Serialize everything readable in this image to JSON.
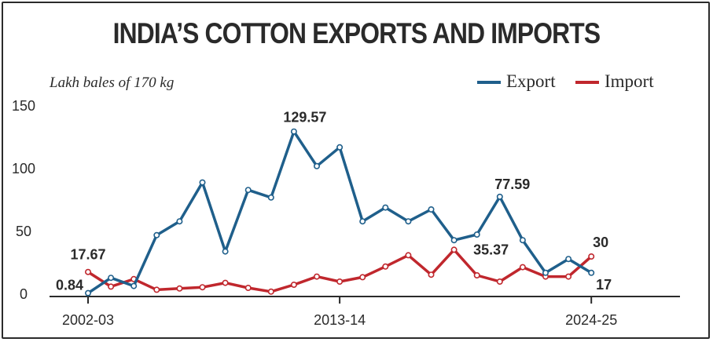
{
  "chart_data": {
    "type": "line",
    "title": "INDIA’S COTTON EXPORTS AND IMPORTS",
    "ylabel": "Lakh bales of 170 kg",
    "xlabel": "",
    "ylim": [
      0,
      150
    ],
    "yticks": [
      0,
      50,
      100,
      150
    ],
    "x": [
      "2002-03",
      "2003-04",
      "2004-05",
      "2005-06",
      "2006-07",
      "2007-08",
      "2008-09",
      "2009-10",
      "2010-11",
      "2011-12",
      "2012-13",
      "2013-14",
      "2014-15",
      "2015-16",
      "2016-17",
      "2017-18",
      "2018-19",
      "2019-20",
      "2020-21",
      "2021-22",
      "2022-23",
      "2023-24",
      "2024-25"
    ],
    "xticks_shown": [
      "2002-03",
      "2013-14",
      "2024-25"
    ],
    "series": [
      {
        "name": "Export",
        "color": "#1f5f8b",
        "values": [
          0.84,
          13,
          6.5,
          47,
          58,
          89,
          34,
          83,
          77,
          129.57,
          102,
          117,
          58,
          69,
          58,
          67.5,
          43,
          47.5,
          77.59,
          43,
          17,
          28,
          17
        ]
      },
      {
        "name": "Import",
        "color": "#c0272d",
        "values": [
          17.67,
          6,
          12,
          3.5,
          4.5,
          5.5,
          9,
          5,
          2,
          7.5,
          14,
          10,
          13.5,
          22,
          31,
          15.5,
          35.37,
          15,
          10,
          21.5,
          14,
          14,
          30
        ]
      }
    ],
    "data_labels": [
      {
        "series": "Export",
        "index": 0,
        "text": "0.84"
      },
      {
        "series": "Import",
        "index": 0,
        "text": "17.67"
      },
      {
        "series": "Export",
        "index": 9,
        "text": "129.57"
      },
      {
        "series": "Export",
        "index": 18,
        "text": "77.59"
      },
      {
        "series": "Import",
        "index": 16,
        "text": "35.37"
      },
      {
        "series": "Import",
        "index": 22,
        "text": "30"
      },
      {
        "series": "Export",
        "index": 22,
        "text": "17"
      }
    ],
    "grid": false,
    "legend_placement": "top-right"
  }
}
